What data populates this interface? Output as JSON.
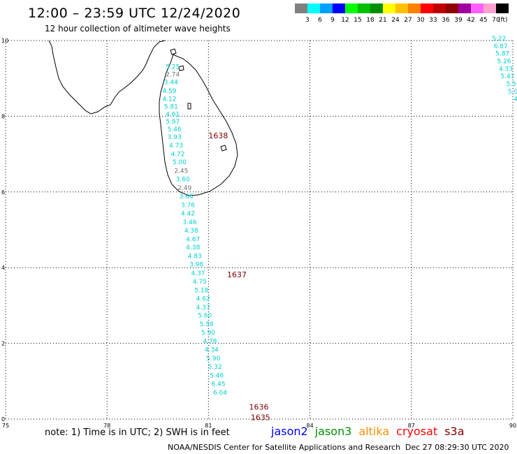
{
  "header": {
    "title": "12:00 – 23:59 UTC 12/24/2020",
    "subtitle": "12 hour collection of altimeter wave heights"
  },
  "legend": {
    "unit": "(ft)",
    "colors": [
      "#808080",
      "#00ffff",
      "#00a0ff",
      "#0000ff",
      "#00ff00",
      "#00c000",
      "#009000",
      "#ffff00",
      "#ffc000",
      "#ff8000",
      "#ff0000",
      "#c00000",
      "#900000",
      "#a000a0",
      "#ff60ff",
      "#ffa0d0",
      "#000000"
    ],
    "labels": [
      "3",
      "6",
      "9",
      "12",
      "15",
      "18",
      "21",
      "24",
      "27",
      "30",
      "33",
      "36",
      "39",
      "42",
      "45",
      "70"
    ]
  },
  "axes": {
    "x_ticks": [
      {
        "label": "75",
        "value": 75
      },
      {
        "label": "78",
        "value": 78
      },
      {
        "label": "81",
        "value": 81
      },
      {
        "label": "84",
        "value": 84
      },
      {
        "label": "87",
        "value": 87
      },
      {
        "label": "90",
        "value": 90
      }
    ],
    "y_ticks": [
      {
        "label": "0",
        "value": 0
      },
      {
        "label": "2",
        "value": 2
      },
      {
        "label": "4",
        "value": 4
      },
      {
        "label": "6",
        "value": 6
      },
      {
        "label": "8",
        "value": 8
      },
      {
        "label": "10",
        "value": 10
      }
    ],
    "lon_range": [
      75,
      90
    ],
    "lat_range": [
      0,
      10
    ]
  },
  "track_main": [
    {
      "swh": "5.25",
      "lon": 80.15,
      "lat": 9.25,
      "color": "#00d0d0"
    },
    {
      "swh": "2.74",
      "lon": 80.15,
      "lat": 9.05,
      "color": "#707070"
    },
    {
      "swh": "3.44",
      "lon": 80.1,
      "lat": 8.85,
      "color": "#00d0d0"
    },
    {
      "swh": "4.59",
      "lon": 80.05,
      "lat": 8.62,
      "color": "#00d0d0"
    },
    {
      "swh": "4.12",
      "lon": 80.05,
      "lat": 8.4,
      "color": "#00d0d0"
    },
    {
      "swh": "5.81",
      "lon": 80.1,
      "lat": 8.2,
      "color": "#00d0d0"
    },
    {
      "swh": "4.61",
      "lon": 80.15,
      "lat": 8.0,
      "color": "#00d0d0"
    },
    {
      "swh": "5.97",
      "lon": 80.15,
      "lat": 7.8,
      "color": "#00d0d0"
    },
    {
      "swh": "5.46",
      "lon": 80.2,
      "lat": 7.6,
      "color": "#00d0d0"
    },
    {
      "swh": "3.93",
      "lon": 80.2,
      "lat": 7.4,
      "color": "#00d0d0"
    },
    {
      "swh": "4.73",
      "lon": 80.25,
      "lat": 7.18,
      "color": "#00d0d0"
    },
    {
      "swh": "4.72",
      "lon": 80.3,
      "lat": 6.95,
      "color": "#00d0d0"
    },
    {
      "swh": "5.00",
      "lon": 80.35,
      "lat": 6.73,
      "color": "#00d0d0"
    },
    {
      "swh": "2.45",
      "lon": 80.4,
      "lat": 6.5,
      "color": "#707070"
    },
    {
      "swh": "3.60",
      "lon": 80.45,
      "lat": 6.28,
      "color": "#00d0d0"
    },
    {
      "swh": "2.49",
      "lon": 80.5,
      "lat": 6.05,
      "color": "#707070"
    },
    {
      "swh": "3.66",
      "lon": 80.55,
      "lat": 5.83,
      "color": "#00d0d0"
    },
    {
      "swh": "3.76",
      "lon": 80.6,
      "lat": 5.6,
      "color": "#00d0d0"
    },
    {
      "swh": "4.42",
      "lon": 80.6,
      "lat": 5.38,
      "color": "#00d0d0"
    },
    {
      "swh": "3.46",
      "lon": 80.65,
      "lat": 5.15,
      "color": "#00d0d0"
    },
    {
      "swh": "4.38",
      "lon": 80.7,
      "lat": 4.93,
      "color": "#00d0d0"
    },
    {
      "swh": "4.67",
      "lon": 80.75,
      "lat": 4.7,
      "color": "#00d0d0"
    },
    {
      "swh": "4.38",
      "lon": 80.75,
      "lat": 4.48,
      "color": "#00d0d0"
    },
    {
      "swh": "4.83",
      "lon": 80.8,
      "lat": 4.25,
      "color": "#00d0d0"
    },
    {
      "swh": "3.98",
      "lon": 80.85,
      "lat": 4.03,
      "color": "#00d0d0"
    },
    {
      "swh": "4.37",
      "lon": 80.9,
      "lat": 3.8,
      "color": "#00d0d0"
    },
    {
      "swh": "4.75",
      "lon": 80.95,
      "lat": 3.58,
      "color": "#00d0d0"
    },
    {
      "swh": "5.18",
      "lon": 81.0,
      "lat": 3.35,
      "color": "#00d0d0"
    },
    {
      "swh": "4.62",
      "lon": 81.05,
      "lat": 3.13,
      "color": "#00d0d0"
    },
    {
      "swh": "4.37",
      "lon": 81.05,
      "lat": 2.9,
      "color": "#00d0d0"
    },
    {
      "swh": "5.60",
      "lon": 81.1,
      "lat": 2.68,
      "color": "#00d0d0"
    },
    {
      "swh": "5.58",
      "lon": 81.15,
      "lat": 2.45,
      "color": "#00d0d0"
    },
    {
      "swh": "5.90",
      "lon": 81.2,
      "lat": 2.23,
      "color": "#00d0d0"
    },
    {
      "swh": "4.78",
      "lon": 81.25,
      "lat": 2.0,
      "color": "#00d0d0"
    },
    {
      "swh": "4.34",
      "lon": 81.3,
      "lat": 1.78,
      "color": "#00d0d0"
    },
    {
      "swh": "5.90",
      "lon": 81.35,
      "lat": 1.55,
      "color": "#00d0d0"
    },
    {
      "swh": "5.32",
      "lon": 81.4,
      "lat": 1.33,
      "color": "#00d0d0"
    },
    {
      "swh": "5.46",
      "lon": 81.45,
      "lat": 1.1,
      "color": "#00d0d0"
    },
    {
      "swh": "6.45",
      "lon": 81.5,
      "lat": 0.88,
      "color": "#00d0d0"
    },
    {
      "swh": "6.04",
      "lon": 81.55,
      "lat": 0.65,
      "color": "#00d0d0"
    }
  ],
  "track_east": [
    {
      "swh": "5.22",
      "lon": 89.8,
      "lat": 10.0,
      "color": "#00d0d0"
    },
    {
      "swh": "6.87",
      "lon": 89.85,
      "lat": 9.8,
      "color": "#00d0d0"
    },
    {
      "swh": "5.87",
      "lon": 89.9,
      "lat": 9.6,
      "color": "#00d0d0"
    },
    {
      "swh": "5.26",
      "lon": 89.95,
      "lat": 9.4,
      "color": "#00d0d0"
    },
    {
      "swh": "4.33",
      "lon": 90.0,
      "lat": 9.2,
      "color": "#00d0d0"
    },
    {
      "swh": "5.47",
      "lon": 90.05,
      "lat": 9.0,
      "color": "#00d0d0"
    },
    {
      "swh": "5.5",
      "lon": 90.1,
      "lat": 8.8,
      "color": "#00d0d0"
    },
    {
      "swh": "5.0",
      "lon": 90.15,
      "lat": 8.6,
      "color": "#00d0d0"
    },
    {
      "swh": "4.",
      "lon": 90.2,
      "lat": 8.4,
      "color": "#00d0d0"
    },
    {
      "swh": "4",
      "lon": 90.25,
      "lat": 8.2,
      "color": "#00d0d0"
    }
  ],
  "east_extra": {
    "text": "2",
    "color": "#008000",
    "lon": 90.3,
    "lat": 10.0
  },
  "times": [
    {
      "label": "1638",
      "lon": 81.0,
      "lat": 7.42
    },
    {
      "label": "1637",
      "lon": 81.55,
      "lat": 3.75
    },
    {
      "label": "1636",
      "lon": 82.2,
      "lat": 0.25
    },
    {
      "label": "1635",
      "lon": 82.25,
      "lat": -0.03
    }
  ],
  "time_color": "#800000",
  "footer": {
    "note": "note:  1) Time is in UTC;  2) SWH is in feet",
    "satellites": [
      {
        "name": "jason2",
        "color": "#0000ff"
      },
      {
        "name": "jason3",
        "color": "#009000"
      },
      {
        "name": "altika",
        "color": "#ff9000"
      },
      {
        "name": "cryosat",
        "color": "#ff0000"
      },
      {
        "name": "s3a",
        "color": "#800000"
      }
    ],
    "credit": "NOAA/NESDIS Center for Satellite Applications and Research",
    "timestamp": "Dec 27 08:29:30 UTC 2020"
  }
}
